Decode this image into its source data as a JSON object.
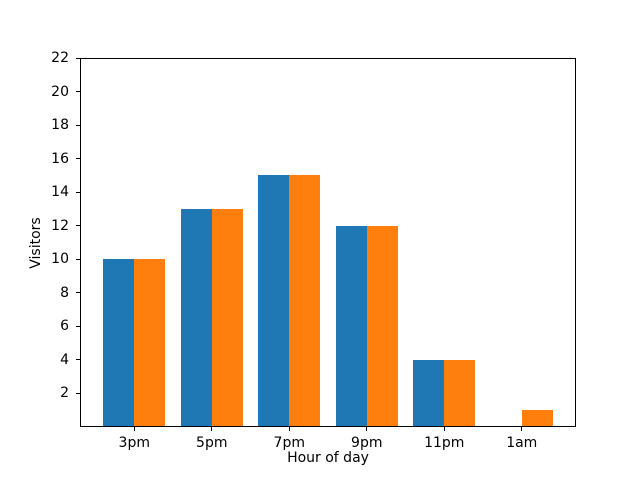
{
  "chart_data": {
    "type": "bar",
    "title": "",
    "xlabel": "Hour of day",
    "ylabel": "Visitors",
    "categories": [
      "3pm",
      "5pm",
      "7pm",
      "9pm",
      "11pm",
      "1am"
    ],
    "series": [
      {
        "name": "blue",
        "color": "#1f77b4",
        "values": [
          10,
          13,
          15,
          12,
          4,
          0
        ]
      },
      {
        "name": "orange",
        "color": "#ff7f0e",
        "values": [
          10,
          13,
          15,
          12,
          4,
          1
        ]
      }
    ],
    "bar_width": 0.4,
    "xlim": [
      -0.7,
      5.7
    ],
    "ylim": [
      0,
      22
    ],
    "yticks": [
      2,
      4,
      6,
      8,
      10,
      12,
      14,
      16,
      18,
      20,
      22
    ],
    "grid": false,
    "legend": null,
    "axis_color": "#000000",
    "background_color": "#ffffff"
  }
}
